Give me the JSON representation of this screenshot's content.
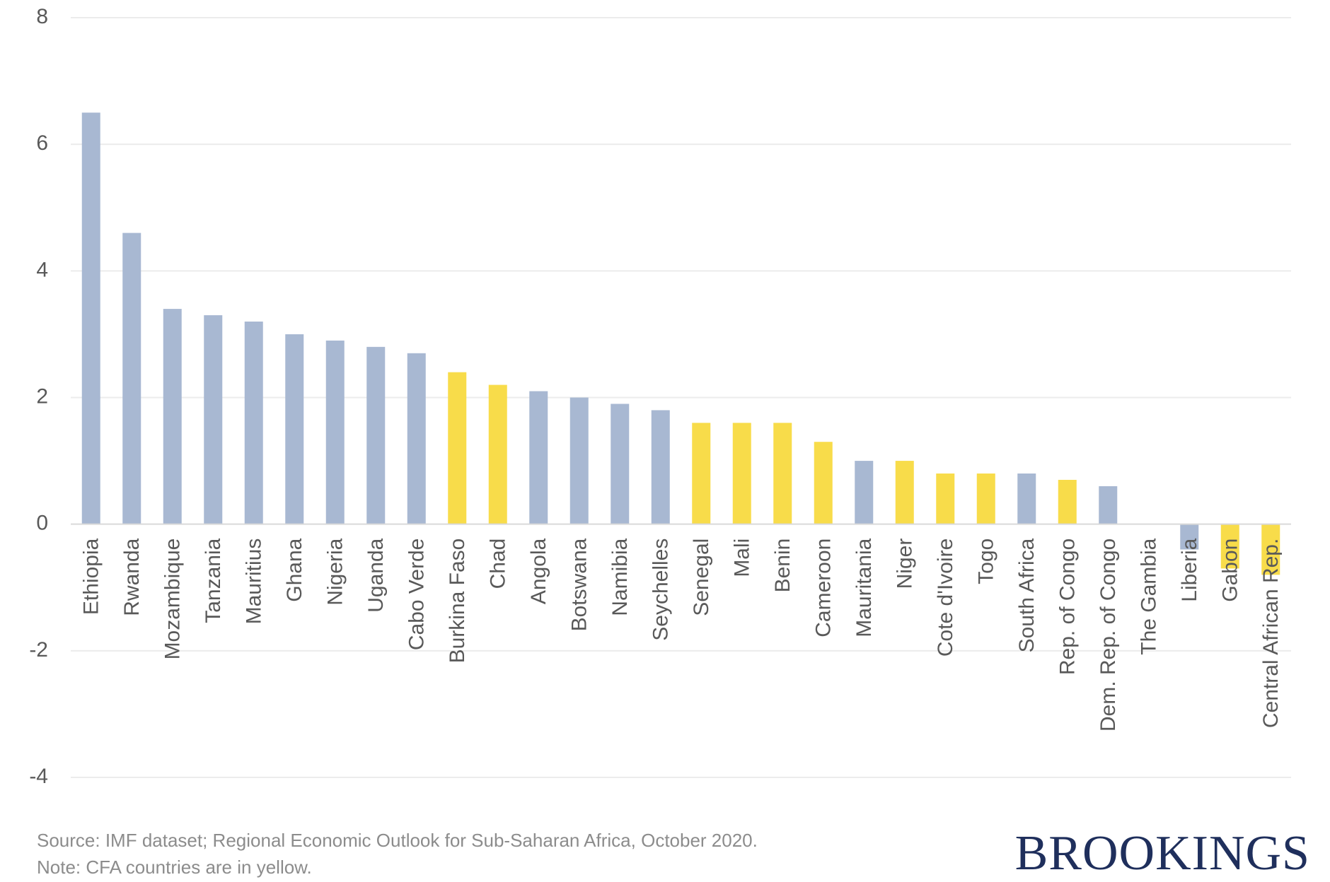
{
  "chart_data": {
    "type": "bar",
    "categories": [
      "Ethiopia",
      "Rwanda",
      "Mozambique",
      "Tanzania",
      "Mauritius",
      "Ghana",
      "Nigeria",
      "Uganda",
      "Cabo Verde",
      "Burkina Faso",
      "Chad",
      "Angola",
      "Botswana",
      "Namibia",
      "Seychelles",
      "Senegal",
      "Mali",
      "Benin",
      "Cameroon",
      "Mauritania",
      "Niger",
      "Cote d'Ivoire",
      "Togo",
      "South Africa",
      "Rep. of Congo",
      "Dem. Rep. of Congo",
      "The Gambia",
      "Liberia",
      "Gabon",
      "Central African Rep."
    ],
    "values": [
      6.5,
      4.6,
      3.4,
      3.3,
      3.2,
      3.0,
      2.9,
      2.8,
      2.7,
      2.4,
      2.2,
      2.1,
      2.0,
      1.9,
      1.8,
      1.6,
      1.6,
      1.6,
      1.3,
      1.0,
      1.0,
      0.8,
      0.8,
      0.8,
      0.7,
      0.6,
      0.0,
      -0.4,
      -0.7,
      -0.8
    ],
    "cfa": [
      false,
      false,
      false,
      false,
      false,
      false,
      false,
      false,
      false,
      true,
      true,
      false,
      false,
      false,
      false,
      true,
      true,
      true,
      true,
      false,
      true,
      true,
      true,
      false,
      true,
      false,
      false,
      false,
      true,
      true
    ],
    "ylim": [
      -4,
      8
    ],
    "yticks": [
      -4,
      -2,
      0,
      2,
      4,
      6,
      8
    ],
    "grid": true,
    "colors": {
      "non_cfa": "#a8b8d2",
      "cfa": "#f8dc4a",
      "grid": "#ececec",
      "zero_line": "#d9d9d9",
      "tick_text": "#595959"
    }
  },
  "footer": {
    "source": "Source: IMF  dataset; Regional Economic Outlook for Sub-Saharan Africa, October 2020.",
    "note": "Note: CFA countries are in yellow."
  },
  "logo": {
    "text": "BROOKINGS"
  }
}
